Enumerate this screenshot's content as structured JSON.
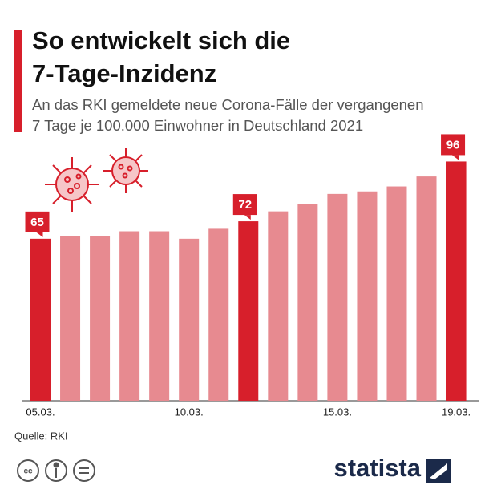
{
  "chart_data": {
    "type": "bar",
    "title": [
      "So entwickelt sich die",
      "7-Tage-Inzidenz"
    ],
    "subtitle": [
      "An das RKI gemeldete neue Corona-Fälle der vergangenen",
      "7 Tage je 100.000 Einwohner in Deutschland 2021"
    ],
    "categories": [
      "05.03.",
      null,
      null,
      null,
      null,
      "10.03.",
      null,
      null,
      null,
      null,
      "15.03.",
      null,
      null,
      null,
      "19.03."
    ],
    "values": [
      65,
      66,
      66,
      68,
      68,
      65,
      69,
      72,
      76,
      79,
      83,
      84,
      86,
      90,
      96
    ],
    "value_labels": [
      "65",
      null,
      null,
      null,
      null,
      null,
      null,
      "72",
      null,
      null,
      null,
      null,
      null,
      null,
      "96"
    ],
    "colors": [
      "#d71f2b",
      "#e78a90",
      "#e78a90",
      "#e78a90",
      "#e78a90",
      "#e78a90",
      "#e78a90",
      "#d71f2b",
      "#e78a90",
      "#e78a90",
      "#e78a90",
      "#e78a90",
      "#e78a90",
      "#e78a90",
      "#d71f2b"
    ],
    "ylim": [
      0,
      100
    ],
    "source": "Quelle: RKI",
    "brand": "statista"
  }
}
